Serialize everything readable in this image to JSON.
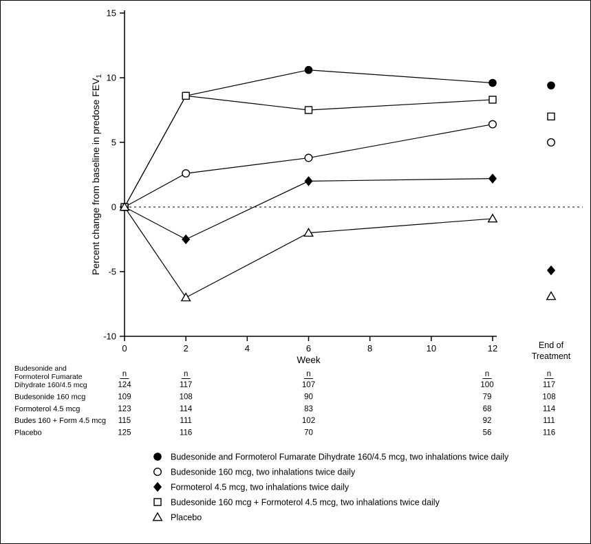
{
  "figure": {
    "y_axis_label": "Percent change from baseline in predose FEV",
    "y_axis_label_sub": "1",
    "x_axis_label": "Week",
    "end_of_treatment_label": [
      "End of",
      "Treatment"
    ]
  },
  "chart_data": {
    "type": "line",
    "x": [
      0,
      2,
      6,
      12
    ],
    "x_ticks": [
      0,
      2,
      4,
      6,
      8,
      10,
      12
    ],
    "y_ticks": [
      -10,
      -5,
      0,
      5,
      10,
      15
    ],
    "ylim": [
      -10,
      15
    ],
    "xlabel": "Week",
    "ylabel": "Percent change from baseline in predose FEV1",
    "reference_line_y": 0,
    "grid": false,
    "legend_position": "bottom",
    "series": [
      {
        "name": "Budesonide and Formoterol Fumarate Dihydrate 160/4.5 mcg",
        "marker": "filled-circle",
        "values": [
          0,
          8.6,
          10.6,
          9.6
        ],
        "end_of_treatment": 9.4
      },
      {
        "name": "Budesonide 160 mcg",
        "marker": "open-circle",
        "values": [
          0,
          2.6,
          3.8,
          6.4
        ],
        "end_of_treatment": 5.0
      },
      {
        "name": "Formoterol 4.5 mcg",
        "marker": "filled-diamond",
        "values": [
          0,
          -2.5,
          2.0,
          2.2
        ],
        "end_of_treatment": -4.9
      },
      {
        "name": "Budesonide 160 mcg + Formoterol 4.5 mcg",
        "marker": "open-square",
        "values": [
          0,
          8.6,
          7.5,
          8.3
        ],
        "end_of_treatment": 7.0
      },
      {
        "name": "Placebo",
        "marker": "open-triangle",
        "values": [
          0,
          -7.0,
          -2.0,
          -0.9
        ],
        "end_of_treatment": -6.9
      }
    ]
  },
  "n_table": {
    "header": "n",
    "columns_weeks": [
      0,
      2,
      6,
      12
    ],
    "rows": [
      {
        "label_lines": [
          "Budesonide and",
          "Formoterol Fumarate",
          "Dihydrate 160/4.5 mcg"
        ],
        "values": [
          "124",
          "117",
          "107",
          "100",
          "117"
        ]
      },
      {
        "label_lines": [
          "Budesonide 160 mcg"
        ],
        "values": [
          "109",
          "108",
          "90",
          "79",
          "108"
        ]
      },
      {
        "label_lines": [
          "Formoterol 4.5 mcg"
        ],
        "values": [
          "123",
          "114",
          "83",
          "68",
          "114"
        ]
      },
      {
        "label_lines": [
          "Budes 160 + Form 4.5 mcg"
        ],
        "values": [
          "115",
          "111",
          "102",
          "92",
          "111"
        ]
      },
      {
        "label_lines": [
          "Placebo"
        ],
        "values": [
          "125",
          "116",
          "70",
          "56",
          "116"
        ]
      }
    ]
  },
  "legend": [
    {
      "marker": "filled-circle",
      "label": "Budesonide and Formoterol Fumarate Dihydrate 160/4.5 mcg, two inhalations twice daily"
    },
    {
      "marker": "open-circle",
      "label": "Budesonide 160 mcg, two inhalations twice daily"
    },
    {
      "marker": "filled-diamond",
      "label": "Formoterol 4.5 mcg, two inhalations twice daily"
    },
    {
      "marker": "open-square",
      "label": "Budesonide 160 mcg + Formoterol 4.5 mcg, two inhalations twice daily"
    },
    {
      "marker": "open-triangle",
      "label": "Placebo"
    }
  ],
  "colors": {
    "ink": "#000000",
    "background": "#ffffff"
  }
}
